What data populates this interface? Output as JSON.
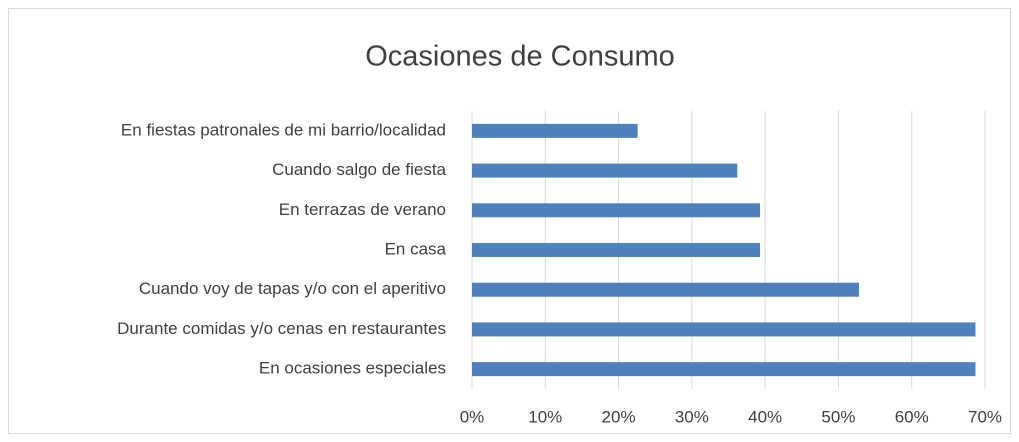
{
  "chart_data": {
    "type": "hbar",
    "title": "Ocasiones de Consumo",
    "categories": [
      "En fiestas patronales de mi barrio/localidad",
      "Cuando salgo de fiesta",
      "En terrazas de verano",
      "En casa",
      "Cuando voy de tapas y/o con el aperitivo",
      "Durante comidas y/o cenas en restaurantes",
      "En ocasiones especiales"
    ],
    "values": [
      22.6,
      36.2,
      39.3,
      39.3,
      52.8,
      68.7,
      68.7
    ],
    "color": "#4f81bd",
    "xlim": [
      0,
      70
    ],
    "xticks": [
      {
        "value": 0,
        "label": "0%"
      },
      {
        "value": 10,
        "label": "10%"
      },
      {
        "value": 20,
        "label": "20%"
      },
      {
        "value": 30,
        "label": "30%"
      },
      {
        "value": 40,
        "label": "40%"
      },
      {
        "value": 50,
        "label": "50%"
      },
      {
        "value": 60,
        "label": "60%"
      },
      {
        "value": 70,
        "label": "70%"
      }
    ],
    "grid": true
  }
}
